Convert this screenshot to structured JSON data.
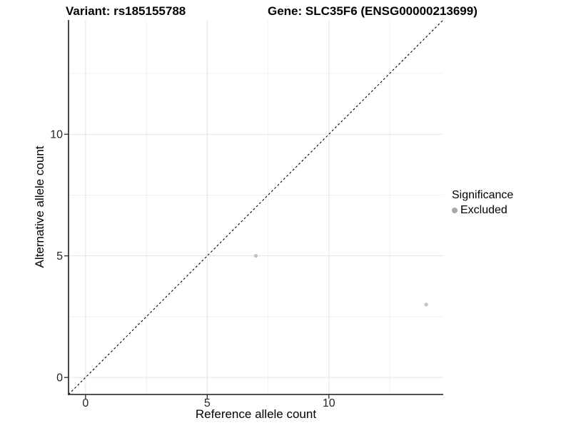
{
  "header": {
    "title_left": "Variant: rs185155788",
    "title_right": "Gene: SLC35F6 (ENSG00000213699)"
  },
  "chart_data": {
    "type": "scatter",
    "title": "Variant: rs185155788 — Gene: SLC35F6 (ENSG00000213699)",
    "xlabel": "Reference allele count",
    "ylabel": "Alternative allele count",
    "xlim": [
      -0.7,
      14.7
    ],
    "ylim": [
      -0.7,
      14.7
    ],
    "xticks": [
      0,
      5,
      10
    ],
    "yticks": [
      0,
      5,
      10
    ],
    "xticks_minor": [
      2.5,
      7.5,
      12.5
    ],
    "yticks_minor": [
      2.5,
      7.5,
      12.5
    ],
    "grid": true,
    "points": [
      {
        "x": 7,
        "y": 5,
        "series": "Excluded"
      },
      {
        "x": 14,
        "y": 3,
        "series": "Excluded"
      }
    ],
    "identity_line": {
      "slope": 1,
      "intercept": 0,
      "style": "dashed"
    },
    "point_color": "#c3c3c3",
    "colors": {
      "grid_major": "#e3e3e3",
      "grid_minor": "#f1f1f1",
      "axis_line": "#1a1a1a",
      "tick_label": "#262626",
      "dashed_line": "#000000"
    },
    "legend": {
      "title": "Significance",
      "position": "right",
      "entries": [
        {
          "label": "Excluded",
          "color": "#a9a9a9"
        }
      ]
    }
  }
}
